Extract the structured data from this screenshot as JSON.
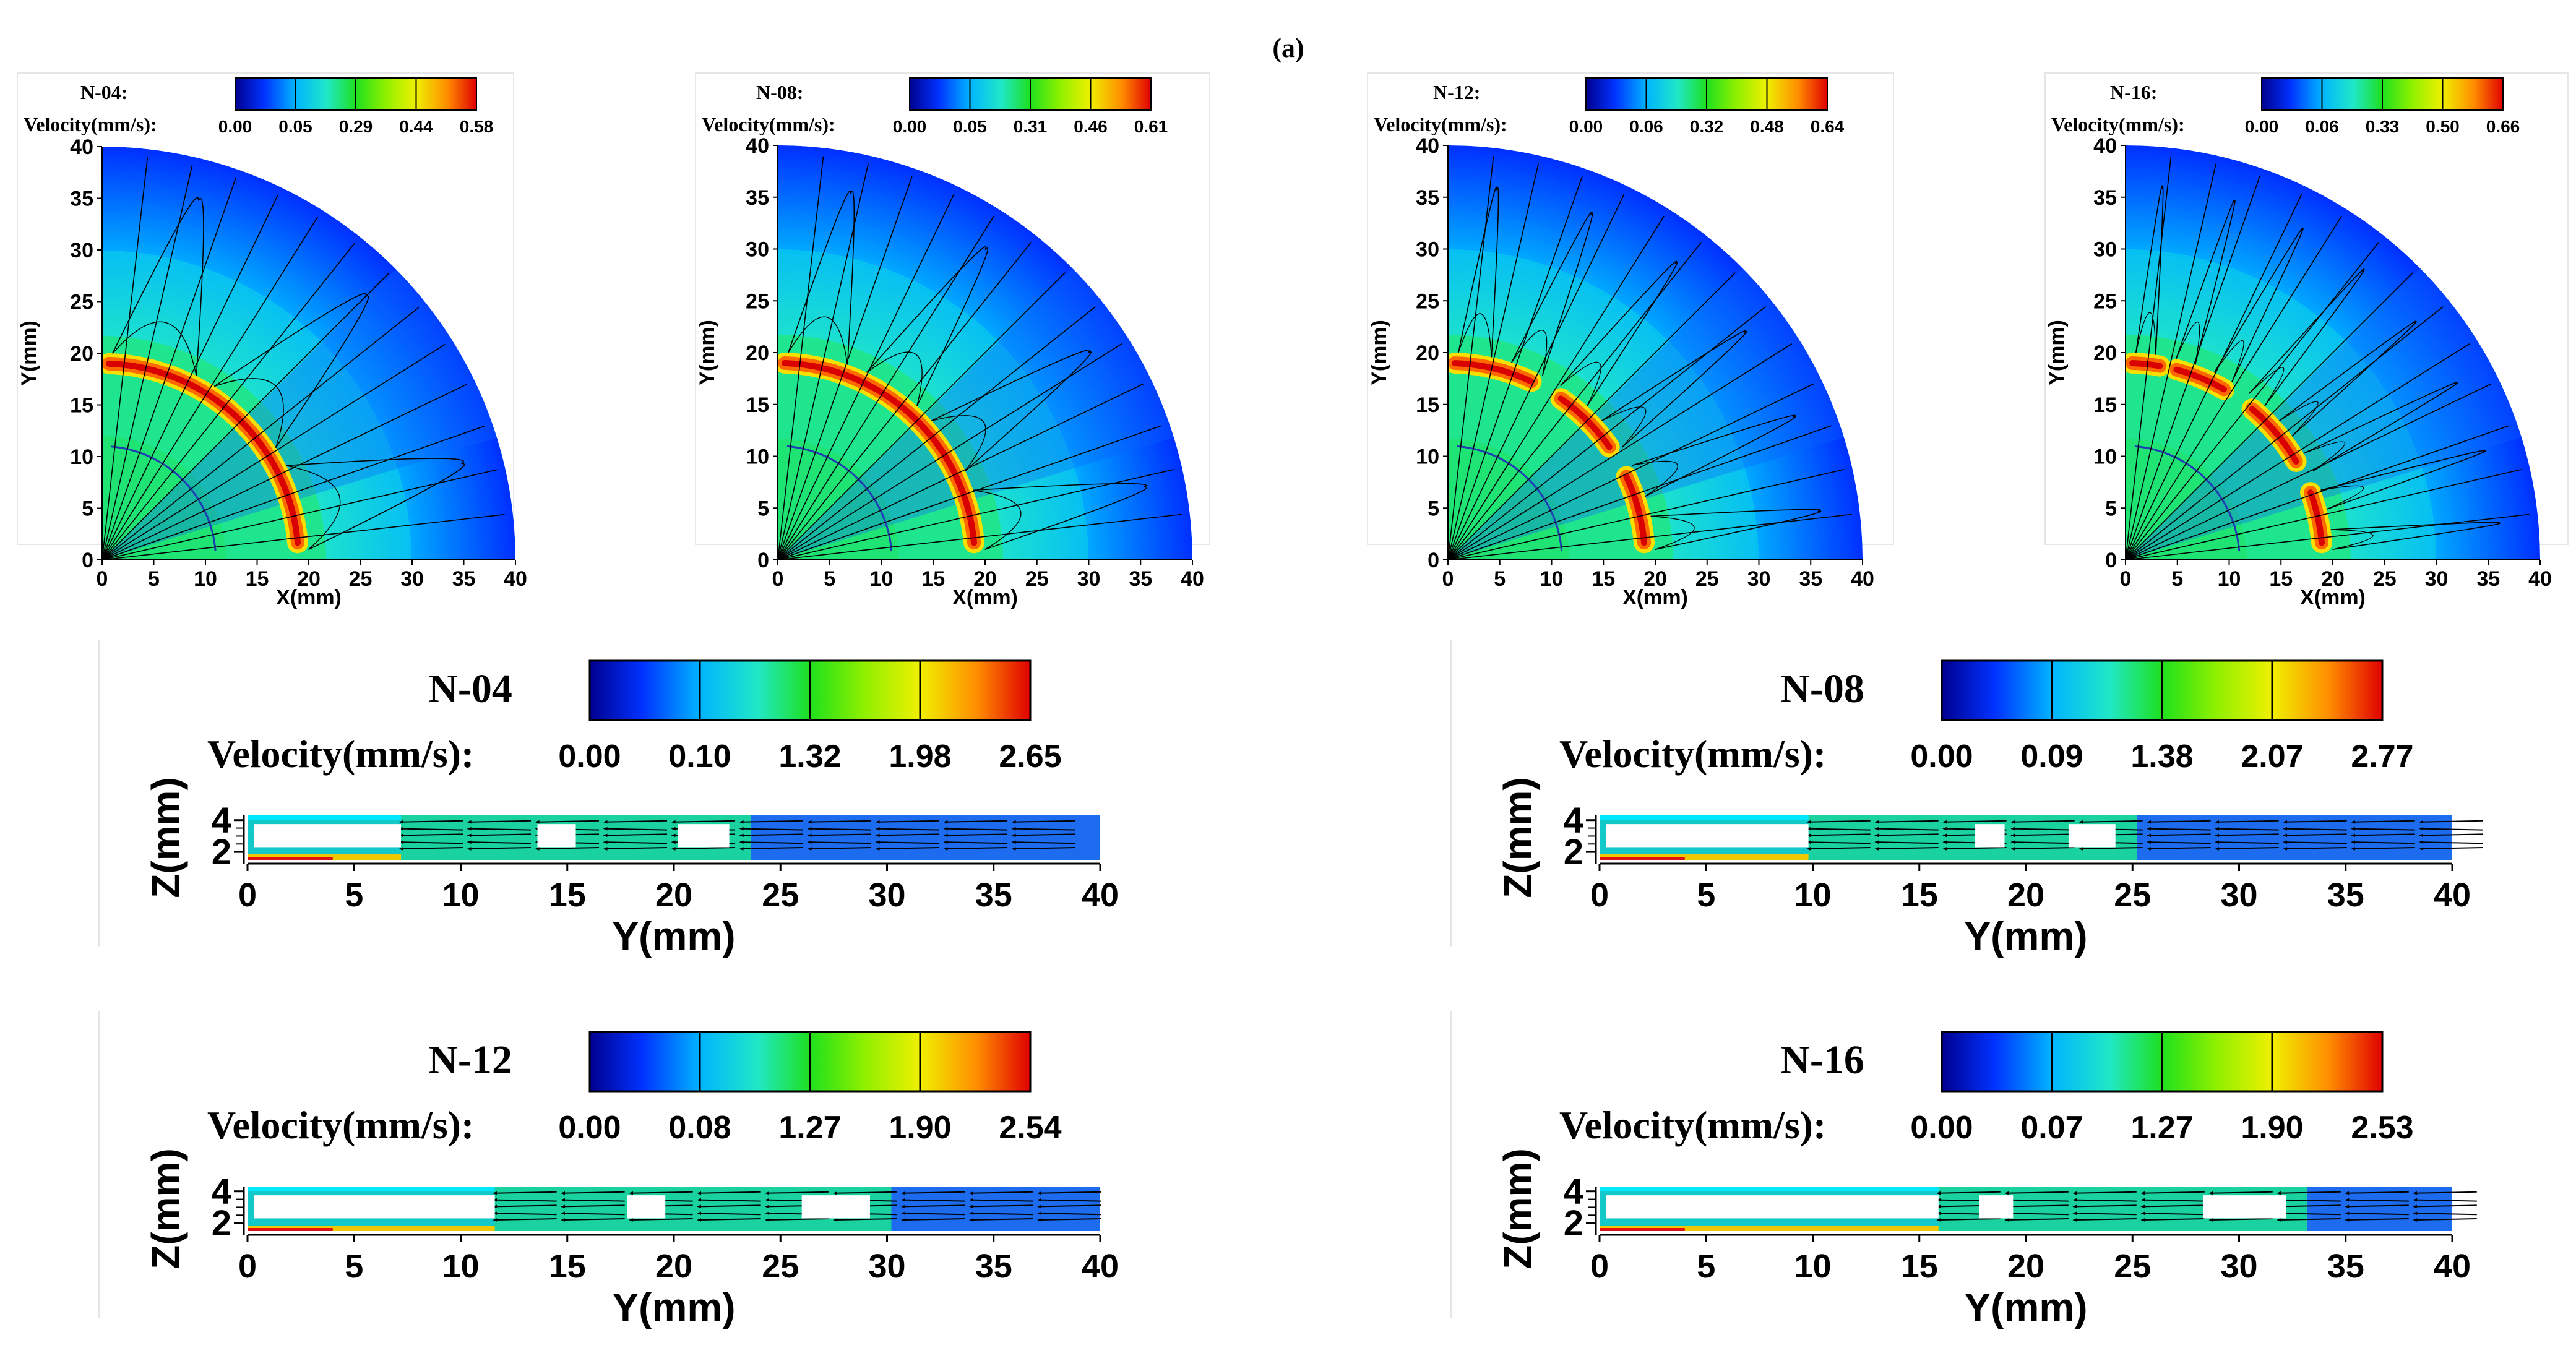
{
  "figure_label": "(a)",
  "chart_data": [
    {
      "type": "heatmap",
      "view": "quarter-disk XY",
      "case": "N-04:",
      "colorbar_label": "Velocity(mm/s):",
      "colorbar_ticks": [
        "0.00",
        "0.05",
        "0.29",
        "0.44",
        "0.58"
      ],
      "vmin": 0.0,
      "vmax": 0.58,
      "xlabel": "X(mm)",
      "ylabel": "Y(mm)",
      "xlim": [
        0,
        40
      ],
      "ylim": [
        0,
        40
      ],
      "xticks": [
        0,
        5,
        10,
        15,
        20,
        25,
        30,
        35,
        40
      ],
      "yticks": [
        0,
        5,
        10,
        15,
        20,
        25,
        30,
        35,
        40
      ],
      "electrode_arcs": [
        {
          "radius": 19,
          "start_deg": 5,
          "end_deg": 88
        }
      ],
      "inner_radius": 11,
      "sources": 4
    },
    {
      "type": "heatmap",
      "view": "quarter-disk XY",
      "case": "N-08:",
      "colorbar_label": "Velocity(mm/s):",
      "colorbar_ticks": [
        "0.00",
        "0.05",
        "0.31",
        "0.46",
        "0.61"
      ],
      "vmin": 0.0,
      "vmax": 0.61,
      "xlabel": "X(mm)",
      "ylabel": "Y(mm)",
      "xlim": [
        0,
        40
      ],
      "ylim": [
        0,
        40
      ],
      "xticks": [
        0,
        5,
        10,
        15,
        20,
        25,
        30,
        35,
        40
      ],
      "yticks": [
        0,
        5,
        10,
        15,
        20,
        25,
        30,
        35,
        40
      ],
      "electrode_arcs": [
        {
          "radius": 19,
          "start_deg": 5,
          "end_deg": 88
        }
      ],
      "inner_radius": 11,
      "sources": 8
    },
    {
      "type": "heatmap",
      "view": "quarter-disk XY",
      "case": "N-12:",
      "colorbar_label": "Velocity(mm/s):",
      "colorbar_ticks": [
        "0.00",
        "0.06",
        "0.32",
        "0.48",
        "0.64"
      ],
      "vmin": 0.0,
      "vmax": 0.64,
      "xlabel": "X(mm)",
      "ylabel": "Y(mm)",
      "xlim": [
        0,
        40
      ],
      "ylim": [
        0,
        40
      ],
      "xticks": [
        0,
        5,
        10,
        15,
        20,
        25,
        30,
        35,
        40
      ],
      "yticks": [
        0,
        5,
        10,
        15,
        20,
        25,
        30,
        35,
        40
      ],
      "electrode_arcs": [
        {
          "radius": 19,
          "start_deg": 5,
          "end_deg": 25
        },
        {
          "radius": 19,
          "start_deg": 35,
          "end_deg": 55
        },
        {
          "radius": 19,
          "start_deg": 65,
          "end_deg": 88
        }
      ],
      "inner_radius": 11,
      "sources": 12
    },
    {
      "type": "heatmap",
      "view": "quarter-disk XY",
      "case": "N-16:",
      "colorbar_label": "Velocity(mm/s):",
      "colorbar_ticks": [
        "0.00",
        "0.06",
        "0.33",
        "0.50",
        "0.66"
      ],
      "vmin": 0.0,
      "vmax": 0.66,
      "xlabel": "X(mm)",
      "ylabel": "Y(mm)",
      "xlim": [
        0,
        40
      ],
      "ylim": [
        0,
        40
      ],
      "xticks": [
        0,
        5,
        10,
        15,
        20,
        25,
        30,
        35,
        40
      ],
      "yticks": [
        0,
        5,
        10,
        15,
        20,
        25,
        30,
        35,
        40
      ],
      "electrode_arcs": [
        {
          "radius": 19,
          "start_deg": 5,
          "end_deg": 20
        },
        {
          "radius": 19,
          "start_deg": 30,
          "end_deg": 50
        },
        {
          "radius": 19,
          "start_deg": 60,
          "end_deg": 75
        },
        {
          "radius": 19,
          "start_deg": 80,
          "end_deg": 88
        }
      ],
      "inner_radius": 11,
      "sources": 16
    },
    {
      "type": "heatmap",
      "view": "cross-section YZ",
      "case": "N-04",
      "colorbar_label": "Velocity(mm/s):",
      "colorbar_ticks": [
        "0.00",
        "0.10",
        "1.32",
        "1.98",
        "2.65"
      ],
      "vmin": 0.0,
      "vmax": 2.65,
      "xlabel": "Y(mm)",
      "ylabel": "Z(mm)",
      "xlim": [
        0,
        40
      ],
      "ylim": [
        1.5,
        4.3
      ],
      "xticks": [
        0,
        5,
        10,
        15,
        20,
        25,
        30,
        35,
        40
      ],
      "yticks": [
        2,
        4
      ],
      "electrode_gaps_mm": [
        [
          0.3,
          7.2
        ],
        [
          13.6,
          15.4
        ],
        [
          20.2,
          22.6
        ]
      ]
    },
    {
      "type": "heatmap",
      "view": "cross-section YZ",
      "case": "N-08",
      "colorbar_label": "Velocity(mm/s):",
      "colorbar_ticks": [
        "0.00",
        "0.09",
        "1.38",
        "2.07",
        "2.77"
      ],
      "vmin": 0.0,
      "vmax": 2.77,
      "xlabel": "Y(mm)",
      "ylabel": "Z(mm)",
      "xlim": [
        0,
        40
      ],
      "ylim": [
        1.5,
        4.3
      ],
      "xticks": [
        0,
        5,
        10,
        15,
        20,
        25,
        30,
        35,
        40
      ],
      "yticks": [
        2,
        4
      ],
      "electrode_gaps_mm": [
        [
          0.3,
          9.8
        ],
        [
          17.6,
          19.0
        ],
        [
          22.0,
          24.2
        ]
      ]
    },
    {
      "type": "heatmap",
      "view": "cross-section YZ",
      "case": "N-12",
      "colorbar_label": "Velocity(mm/s):",
      "colorbar_ticks": [
        "0.00",
        "0.08",
        "1.27",
        "1.90",
        "2.54"
      ],
      "vmin": 0.0,
      "vmax": 2.54,
      "xlabel": "Y(mm)",
      "ylabel": "Z(mm)",
      "xlim": [
        0,
        40
      ],
      "ylim": [
        1.5,
        4.3
      ],
      "xticks": [
        0,
        5,
        10,
        15,
        20,
        25,
        30,
        35,
        40
      ],
      "yticks": [
        2,
        4
      ],
      "electrode_gaps_mm": [
        [
          0.3,
          11.6
        ],
        [
          17.8,
          19.6
        ],
        [
          26.0,
          29.2
        ]
      ]
    },
    {
      "type": "heatmap",
      "view": "cross-section YZ",
      "case": "N-16",
      "colorbar_label": "Velocity(mm/s):",
      "colorbar_ticks": [
        "0.00",
        "0.07",
        "1.27",
        "1.90",
        "2.53"
      ],
      "vmin": 0.0,
      "vmax": 2.53,
      "xlabel": "Y(mm)",
      "ylabel": "Z(mm)",
      "xlim": [
        0,
        40
      ],
      "ylim": [
        1.5,
        4.3
      ],
      "xticks": [
        0,
        5,
        10,
        15,
        20,
        25,
        30,
        35,
        40
      ],
      "yticks": [
        2,
        4
      ],
      "electrode_gaps_mm": [
        [
          0.3,
          15.9
        ],
        [
          17.8,
          19.4
        ],
        [
          28.3,
          32.2
        ]
      ]
    }
  ]
}
